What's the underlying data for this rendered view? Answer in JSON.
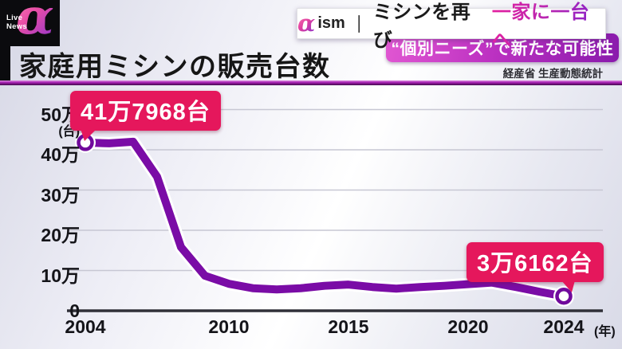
{
  "logo": {
    "live": "Live",
    "news": "News",
    "alpha": "α"
  },
  "topbar": {
    "alpha": "α",
    "ism": "ism",
    "separator": "｜",
    "headline_black": "ミシンを再び",
    "headline_accent": "一家に一台へ",
    "subheadline": "“個別ニーズ”で新たな可能性"
  },
  "header": {
    "title": "家庭用ミシンの販売台数",
    "source": "経産省 生産動態統計"
  },
  "colors": {
    "line": "#7a0ca6",
    "line_halo": "#ffffff",
    "marker_ring": "#70099c",
    "marker_fill": "#ffffff",
    "gridline": "#c7c7d3",
    "axis": "#303038",
    "callout_red": "#e5175c",
    "banner_pink": "#bd32c2",
    "divider_purple": "#a21cae"
  },
  "chart_data": {
    "type": "line",
    "title": "家庭用ミシンの販売台数",
    "xlabel": "",
    "ylabel": "",
    "y_unit": "(台)",
    "x_unit": "(年)",
    "values_unit": "万台",
    "ylim": [
      0,
      50
    ],
    "xlim": [
      2004,
      2024
    ],
    "grid": true,
    "legend": false,
    "x": [
      2004,
      2005,
      2006,
      2007,
      2008,
      2009,
      2010,
      2011,
      2012,
      2013,
      2014,
      2015,
      2016,
      2017,
      2018,
      2019,
      2020,
      2021,
      2022,
      2023,
      2024
    ],
    "values": [
      41.7968,
      41.6,
      42.0,
      33.3,
      15.8,
      8.7,
      6.7,
      5.6,
      5.3,
      5.6,
      6.2,
      6.5,
      5.9,
      5.5,
      5.9,
      6.2,
      6.6,
      7.0,
      5.9,
      4.7,
      3.6162
    ],
    "y_ticks": [
      {
        "value": 50,
        "label": "50万"
      },
      {
        "value": 40,
        "label": "40万"
      },
      {
        "value": 30,
        "label": "30万"
      },
      {
        "value": 20,
        "label": "20万"
      },
      {
        "value": 10,
        "label": "10万"
      },
      {
        "value": 0,
        "label": "0"
      }
    ],
    "x_ticks": [
      {
        "value": 2004,
        "label": "2004"
      },
      {
        "value": 2010,
        "label": "2010"
      },
      {
        "value": 2015,
        "label": "2015"
      },
      {
        "value": 2020,
        "label": "2020"
      },
      {
        "value": 2024,
        "label": "2024"
      }
    ],
    "annotations": [
      {
        "x": 2004,
        "value": 41.7968,
        "label": "41万7968台"
      },
      {
        "x": 2024,
        "value": 3.6162,
        "label": "3万6162台"
      }
    ]
  }
}
